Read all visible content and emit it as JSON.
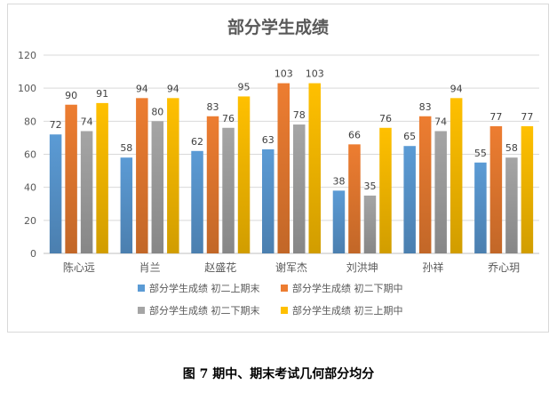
{
  "chart_data": {
    "type": "bar",
    "title": "部分学生成绩",
    "categories": [
      "陈心远",
      "肖兰",
      "赵盛花",
      "谢军杰",
      "刘洪坤",
      "孙祥",
      "乔心玥"
    ],
    "series": [
      {
        "name": "部分学生成绩 初二上期末",
        "color": "#5b9bd5",
        "values": [
          72,
          58,
          62,
          63,
          38,
          65,
          55
        ]
      },
      {
        "name": "部分学生成绩 初二下期中",
        "color": "#ed7d31",
        "values": [
          90,
          94,
          83,
          103,
          66,
          83,
          77
        ]
      },
      {
        "name": "部分学生成绩 初二下期末",
        "color": "#a5a5a5",
        "values": [
          74,
          80,
          76,
          78,
          35,
          74,
          58
        ]
      },
      {
        "name": "部分学生成绩 初三上期中",
        "color": "#ffc000",
        "values": [
          91,
          94,
          95,
          103,
          76,
          94,
          77
        ]
      }
    ],
    "yticks": [
      0,
      20,
      40,
      60,
      80,
      100,
      120
    ],
    "ylim": [
      0,
      120
    ],
    "grid": true,
    "legend": "bottom",
    "data_labels": true
  },
  "caption": "图 7  期中、期末考试几何部分均分"
}
